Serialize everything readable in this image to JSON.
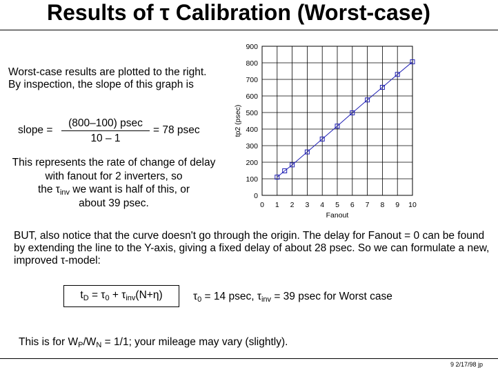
{
  "title": "Results of τ Calibration (Worst-case)",
  "intro_text": "Worst-case results are plotted to the right.  By inspection, the slope of this graph is",
  "slope": {
    "lhs": "slope =",
    "numerator": "(800–100) psec",
    "denominator": "10 – 1",
    "rhs": "= 78 psec"
  },
  "rate": {
    "line1": "This represents the rate of change of delay with fanout for 2 inverters, so",
    "line2_pre": "the τ",
    "line2_sub": "inv",
    "line2_post": " we want is half of this, or",
    "line3": "about 39 psec."
  },
  "paragraph": "BUT, also notice that the curve doesn't go through the origin.  The delay for Fanout = 0 can be found by extending the line to the Y-axis, giving a fixed delay of about 28 psec.  So we can formulate a new, improved τ-model:",
  "formula": {
    "t": "t",
    "t_sub": "D",
    "eq": " = τ",
    "tau0_sub": "0",
    "plus": " + τ",
    "tauinv_sub": "inv",
    "tail": "(N+η)"
  },
  "values": {
    "tau0": "τ",
    "tau0_sub": "0",
    "tau0_val": " = 14 psec, τ",
    "tauinv_sub": "inv",
    "tauinv_val": " = 39 psec for Worst case"
  },
  "mileage": {
    "pre": "This is for W",
    "p_sub": "P",
    "mid": "/W",
    "n_sub": "N",
    "post": " = 1/1; your mileage may vary (slightly)."
  },
  "footer": "9  2/17/98  jp",
  "chart_data": {
    "type": "line",
    "xlabel": "Fanout",
    "ylabel": "tp2 (psec)",
    "xlim": [
      0,
      10
    ],
    "ylim": [
      0,
      900
    ],
    "xticks": [
      "0",
      "1",
      "2",
      "3",
      "4",
      "5",
      "6",
      "7",
      "8",
      "9",
      "10"
    ],
    "yticks": [
      "0",
      "100",
      "200",
      "300",
      "400",
      "500",
      "600",
      "700",
      "800",
      "900"
    ],
    "grid": true,
    "marker": "square",
    "color": "#1f1fb4",
    "x": [
      1,
      1.5,
      2,
      3,
      4,
      5,
      6,
      7,
      8,
      9,
      10
    ],
    "y": [
      110,
      148,
      184,
      262,
      340,
      418,
      498,
      576,
      652,
      730,
      806
    ]
  }
}
